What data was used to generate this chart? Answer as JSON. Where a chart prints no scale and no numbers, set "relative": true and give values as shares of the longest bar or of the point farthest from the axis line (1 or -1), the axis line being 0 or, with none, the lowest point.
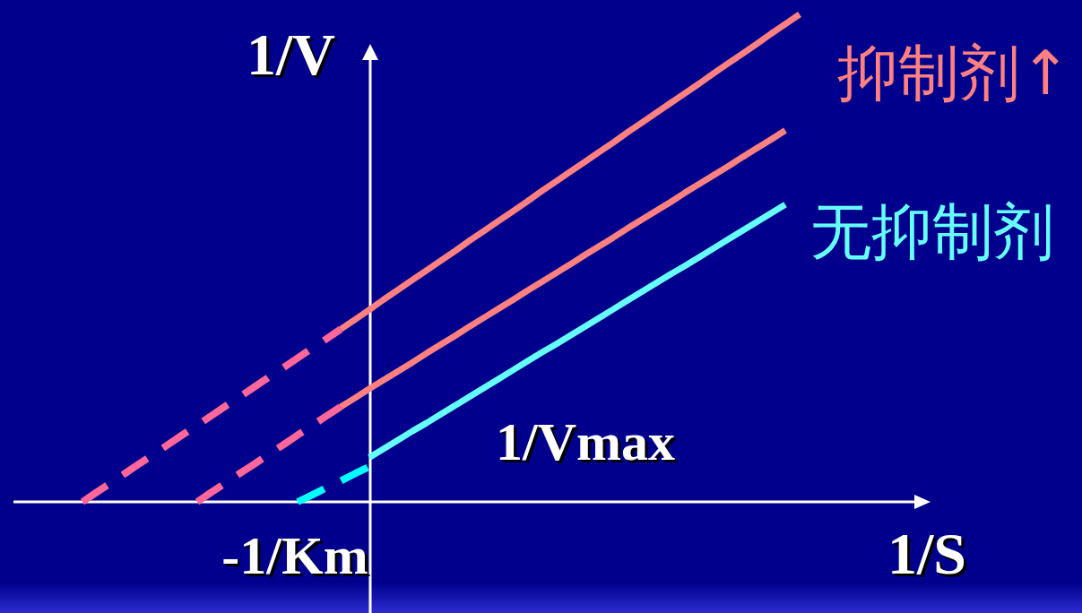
{
  "chart_data": {
    "type": "line",
    "relative": true,
    "xlabel": "1/S",
    "ylabel": "1/V",
    "annotations": [
      "1/Vmax",
      "-1/Km"
    ],
    "categories": [
      null,
      null,
      null,
      null,
      null,
      null,
      null,
      null,
      null,
      null,
      null,
      null,
      null,
      null,
      null,
      null,
      null,
      null,
      null,
      null,
      null,
      null,
      null,
      null,
      null,
      null,
      null,
      null,
      null,
      null,
      null,
      null,
      null,
      null,
      null,
      null,
      null,
      null,
      null,
      null,
      null,
      null,
      null,
      null,
      null,
      null,
      null,
      null,
      null,
      null,
      null
    ],
    "series": [
      {
        "name": "抑制剂↑",
        "color": "#ff8080",
        "values": [
          null,
          null,
          null,
          null,
          null,
          null,
          null,
          null,
          null,
          null,
          null,
          null,
          null,
          null,
          null,
          null,
          null,
          null,
          0.354,
          0.374,
          0.394,
          0.415,
          0.435,
          0.455,
          0.475,
          0.495,
          0.515,
          0.536,
          0.556,
          0.576,
          0.596,
          0.616,
          0.637,
          0.657,
          0.677,
          0.697,
          0.717,
          0.737,
          0.758,
          0.778,
          0.798,
          0.818,
          0.838,
          0.858,
          0.879,
          0.899,
          0.919,
          0.939,
          0.96,
          0.98,
          1.0
        ]
      },
      {
        "color": "#ff6699",
        "line_style": "dashed",
        "values": [
          0,
          0.02,
          0.039,
          0.059,
          0.079,
          0.098,
          0.118,
          0.138,
          0.157,
          0.177,
          0.197,
          0.216,
          0.236,
          0.256,
          0.275,
          0.295,
          0.315,
          0.334,
          0.354,
          null,
          null,
          null,
          null,
          null,
          null,
          null,
          null,
          null,
          null,
          null,
          null,
          null,
          null,
          null,
          null,
          null,
          null,
          null,
          null,
          null,
          null,
          null,
          null,
          null,
          null,
          null,
          null,
          null,
          null,
          null,
          null
        ]
      },
      {
        "color": "#ff8080",
        "values": [
          null,
          null,
          null,
          null,
          null,
          null,
          null,
          null,
          null,
          null,
          null,
          null,
          null,
          null,
          null,
          null,
          null,
          null,
          0.195,
          0.213,
          0.232,
          0.25,
          0.268,
          0.286,
          0.305,
          0.323,
          0.341,
          0.36,
          0.378,
          0.396,
          0.414,
          0.433,
          0.451,
          0.469,
          0.487,
          0.506,
          0.524,
          0.542,
          0.561,
          0.579,
          0.597,
          0.615,
          0.634,
          0.652,
          0.67,
          0.688,
          0.707,
          0.725,
          0.743,
          0.762,
          null
        ]
      },
      {
        "color": "#ff6699",
        "line_style": "dashed",
        "values": [
          null,
          null,
          null,
          null,
          null,
          null,
          null,
          null,
          0,
          0.02,
          0.039,
          0.059,
          0.078,
          0.098,
          0.117,
          0.137,
          0.156,
          0.176,
          0.195,
          null,
          null,
          null,
          null,
          null,
          null,
          null,
          null,
          null,
          null,
          null,
          null,
          null,
          null,
          null,
          null,
          null,
          null,
          null,
          null,
          null,
          null,
          null,
          null,
          null,
          null,
          null,
          null,
          null,
          null,
          null,
          null
        ]
      },
      {
        "name": "无抑制剂",
        "color": "#66ffff",
        "values": [
          null,
          null,
          null,
          null,
          null,
          null,
          null,
          null,
          null,
          null,
          null,
          null,
          null,
          null,
          null,
          null,
          null,
          null,
          null,
          null,
          0.091,
          0.109,
          0.127,
          0.145,
          0.162,
          0.18,
          0.198,
          0.216,
          0.234,
          0.252,
          0.27,
          0.288,
          0.306,
          0.323,
          0.341,
          0.359,
          0.377,
          0.395,
          0.413,
          0.431,
          0.449,
          0.467,
          0.484,
          0.502,
          0.52,
          0.538,
          0.556,
          0.574,
          0.592,
          0.61,
          null
        ]
      },
      {
        "color": "#00ffff",
        "line_style": "dashed",
        "values": [
          null,
          null,
          null,
          null,
          null,
          null,
          null,
          null,
          null,
          null,
          null,
          null,
          null,
          null,
          null,
          0,
          0.014,
          0.029,
          0.043,
          0.058,
          0.072,
          null,
          null,
          null,
          null,
          null,
          null,
          null,
          null,
          null,
          null,
          null,
          null,
          null,
          null,
          null,
          null,
          null,
          null,
          null,
          null,
          null,
          null,
          null,
          null,
          null,
          null,
          null,
          null,
          null,
          null
        ]
      }
    ]
  }
}
